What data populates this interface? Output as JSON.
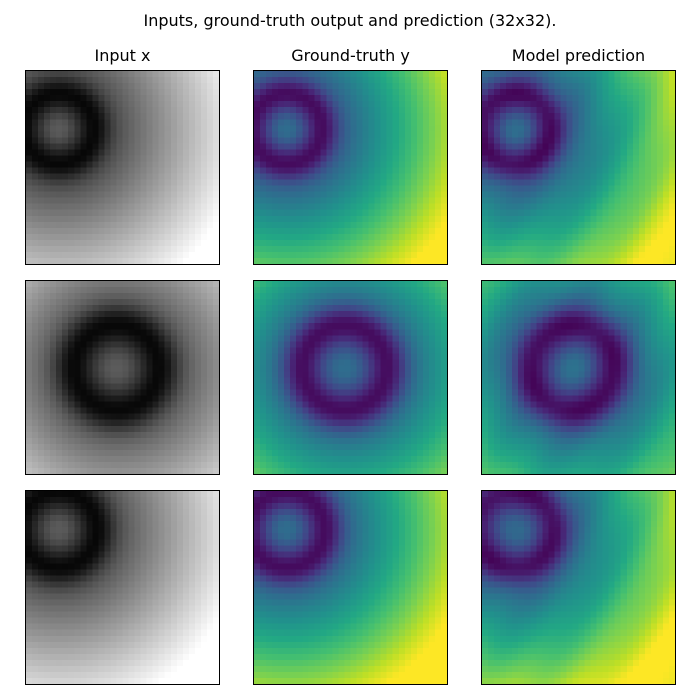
{
  "figure": {
    "suptitle": "Inputs, ground-truth output and prediction (32x32).",
    "column_titles": [
      "Input x",
      "Ground-truth y",
      "Model prediction"
    ]
  },
  "chart_data": {
    "type": "heatmap",
    "grid_resolution": [
      32,
      32
    ],
    "layout": "3 rows x 3 columns",
    "axes_ticks": "hidden",
    "colormaps": {
      "Input x": "gray",
      "Ground-truth y": "viridis",
      "Model prediction": "viridis"
    },
    "samples": [
      {
        "ring_center_xy": [
          0.17,
          0.3
        ],
        "ring_radius": 0.23,
        "description_col_titles": [
          "Input x",
          "Ground-truth y",
          "Model prediction"
        ]
      },
      {
        "ring_center_xy": [
          0.47,
          0.45
        ],
        "ring_radius": 0.28,
        "description_col_titles": [
          "Input x",
          "Ground-truth y",
          "Model prediction"
        ]
      },
      {
        "ring_center_xy": [
          0.17,
          0.2
        ],
        "ring_radius": 0.25,
        "description_col_titles": [
          "Input x",
          "Ground-truth y",
          "Model prediction"
        ]
      }
    ]
  }
}
